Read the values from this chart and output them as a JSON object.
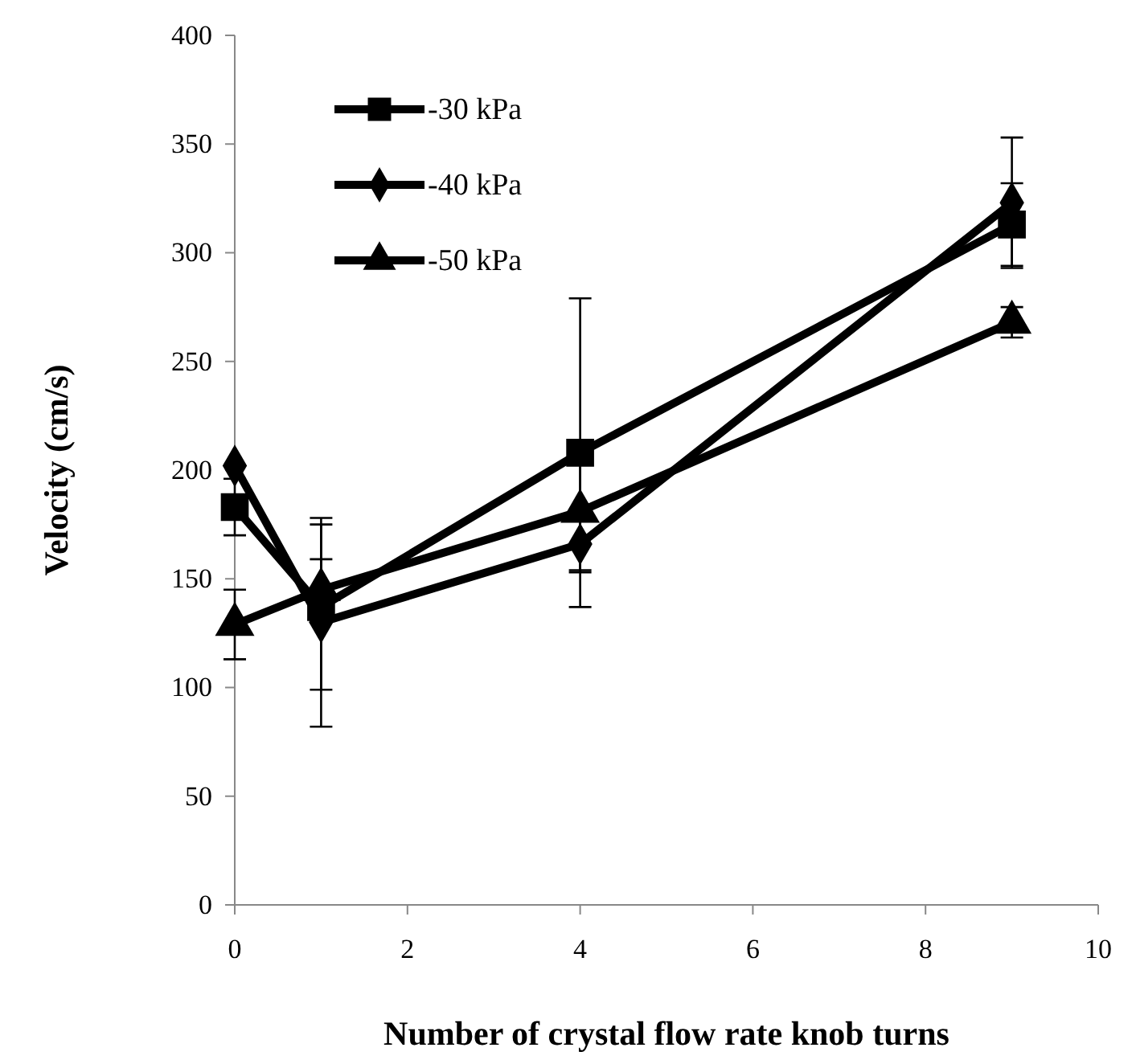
{
  "chart_data": {
    "type": "line",
    "xlabel": "Number of crystal flow rate knob turns",
    "ylabel": "Velocity (cm/s)",
    "x": [
      0,
      1,
      4,
      9
    ],
    "xlim": [
      0,
      10
    ],
    "xticks": [
      0,
      2,
      4,
      6,
      8,
      10
    ],
    "ylim": [
      0,
      400
    ],
    "yticks": [
      0,
      50,
      100,
      150,
      200,
      250,
      300,
      350,
      400
    ],
    "grid": false,
    "legend": "top left",
    "line_style": "solid",
    "series": [
      {
        "name": "-30 kPa",
        "color": "#000000",
        "marker": "square",
        "values": [
          183,
          137,
          208,
          313
        ],
        "errors": [
          13,
          38,
          71,
          19
        ]
      },
      {
        "name": "-40 kPa",
        "color": "#000000",
        "marker": "diamond",
        "values": [
          202,
          130,
          166,
          323
        ],
        "errors": [
          null,
          48,
          13,
          30
        ]
      },
      {
        "name": "-50 kPa",
        "color": "#000000",
        "marker": "triangle",
        "values": [
          129,
          145,
          181,
          268
        ],
        "errors": [
          16,
          14,
          27,
          7
        ]
      }
    ]
  }
}
